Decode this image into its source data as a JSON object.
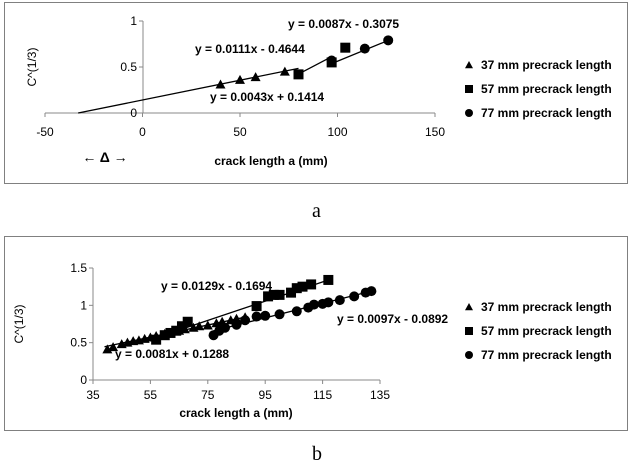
{
  "chart_data": [
    {
      "type": "scatter",
      "panel_caption": "a",
      "xlabel": "crack length a (mm)",
      "ylabel": "C^(1/3)",
      "xlim": [
        -50,
        150
      ],
      "ylim": [
        0,
        1
      ],
      "xticks": [
        "-50",
        "0",
        "50",
        "100",
        "150"
      ],
      "yticks": [
        "0",
        "0.5",
        "1"
      ],
      "annotation": "←  Δ  →",
      "legend_position": "right",
      "series": [
        {
          "name": "37 mm precrack length",
          "marker": "triangle",
          "x": [
            40,
            50,
            58,
            73
          ],
          "y": [
            0.31,
            0.36,
            0.39,
            0.45
          ]
        },
        {
          "name": "57 mm precrack length",
          "marker": "square",
          "x": [
            80,
            97,
            104
          ],
          "y": [
            0.42,
            0.55,
            0.71
          ]
        },
        {
          "name": "77 mm precrack length",
          "marker": "circle",
          "x": [
            97,
            114,
            126
          ],
          "y": [
            0.57,
            0.7,
            0.79
          ]
        }
      ],
      "trendlines": [
        {
          "label": "y = 0.0043x + 0.1414",
          "x_range": [
            -33,
            80
          ]
        },
        {
          "label": "y = 0.0111x - 0.4644",
          "x_range": [
            80,
            97
          ]
        },
        {
          "label": "y = 0.0087x - 0.3075",
          "x_range": [
            97,
            126
          ]
        }
      ]
    },
    {
      "type": "scatter",
      "panel_caption": "b",
      "xlabel": "crack length a (mm)",
      "ylabel": "C^(1/3)",
      "xlim": [
        35,
        135
      ],
      "ylim": [
        0,
        1.5
      ],
      "xticks": [
        "35",
        "55",
        "75",
        "95",
        "115",
        "135"
      ],
      "yticks": [
        "0",
        "0.5",
        "1",
        "1.5"
      ],
      "legend_position": "right",
      "series": [
        {
          "name": "37 mm precrack length",
          "marker": "triangle",
          "x": [
            40,
            42,
            45,
            47,
            49,
            51,
            53,
            55,
            57,
            60,
            62,
            65,
            67,
            70,
            72,
            75,
            78,
            80,
            83,
            85,
            88
          ],
          "y": [
            0.41,
            0.44,
            0.48,
            0.5,
            0.52,
            0.53,
            0.55,
            0.57,
            0.59,
            0.62,
            0.63,
            0.66,
            0.68,
            0.7,
            0.72,
            0.73,
            0.76,
            0.78,
            0.8,
            0.82,
            0.84
          ]
        },
        {
          "name": "57 mm precrack length",
          "marker": "square",
          "x": [
            57,
            60,
            62,
            64,
            66,
            68,
            92,
            96,
            98,
            100,
            104,
            106,
            108,
            111,
            117
          ],
          "y": [
            0.54,
            0.6,
            0.63,
            0.66,
            0.72,
            0.78,
            0.99,
            1.12,
            1.14,
            1.14,
            1.17,
            1.23,
            1.25,
            1.28,
            1.34
          ]
        },
        {
          "name": "77 mm precrack length",
          "marker": "circle",
          "x": [
            77,
            79,
            81,
            85,
            88,
            92,
            95,
            100,
            106,
            110,
            112,
            115,
            117,
            121,
            126,
            130,
            132
          ],
          "y": [
            0.6,
            0.66,
            0.7,
            0.74,
            0.8,
            0.85,
            0.86,
            0.88,
            0.92,
            0.97,
            1.01,
            1.02,
            1.04,
            1.07,
            1.12,
            1.17,
            1.19
          ]
        }
      ],
      "trendlines": [
        {
          "label": "y = 0.0081x + 0.1288",
          "x_range": [
            39,
            89
          ]
        },
        {
          "label": "y = 0.0129x - 0.1694",
          "x_range": [
            57,
            117
          ]
        },
        {
          "label": "y = 0.0097x - 0.0892",
          "x_range": [
            77,
            133
          ]
        }
      ]
    }
  ]
}
